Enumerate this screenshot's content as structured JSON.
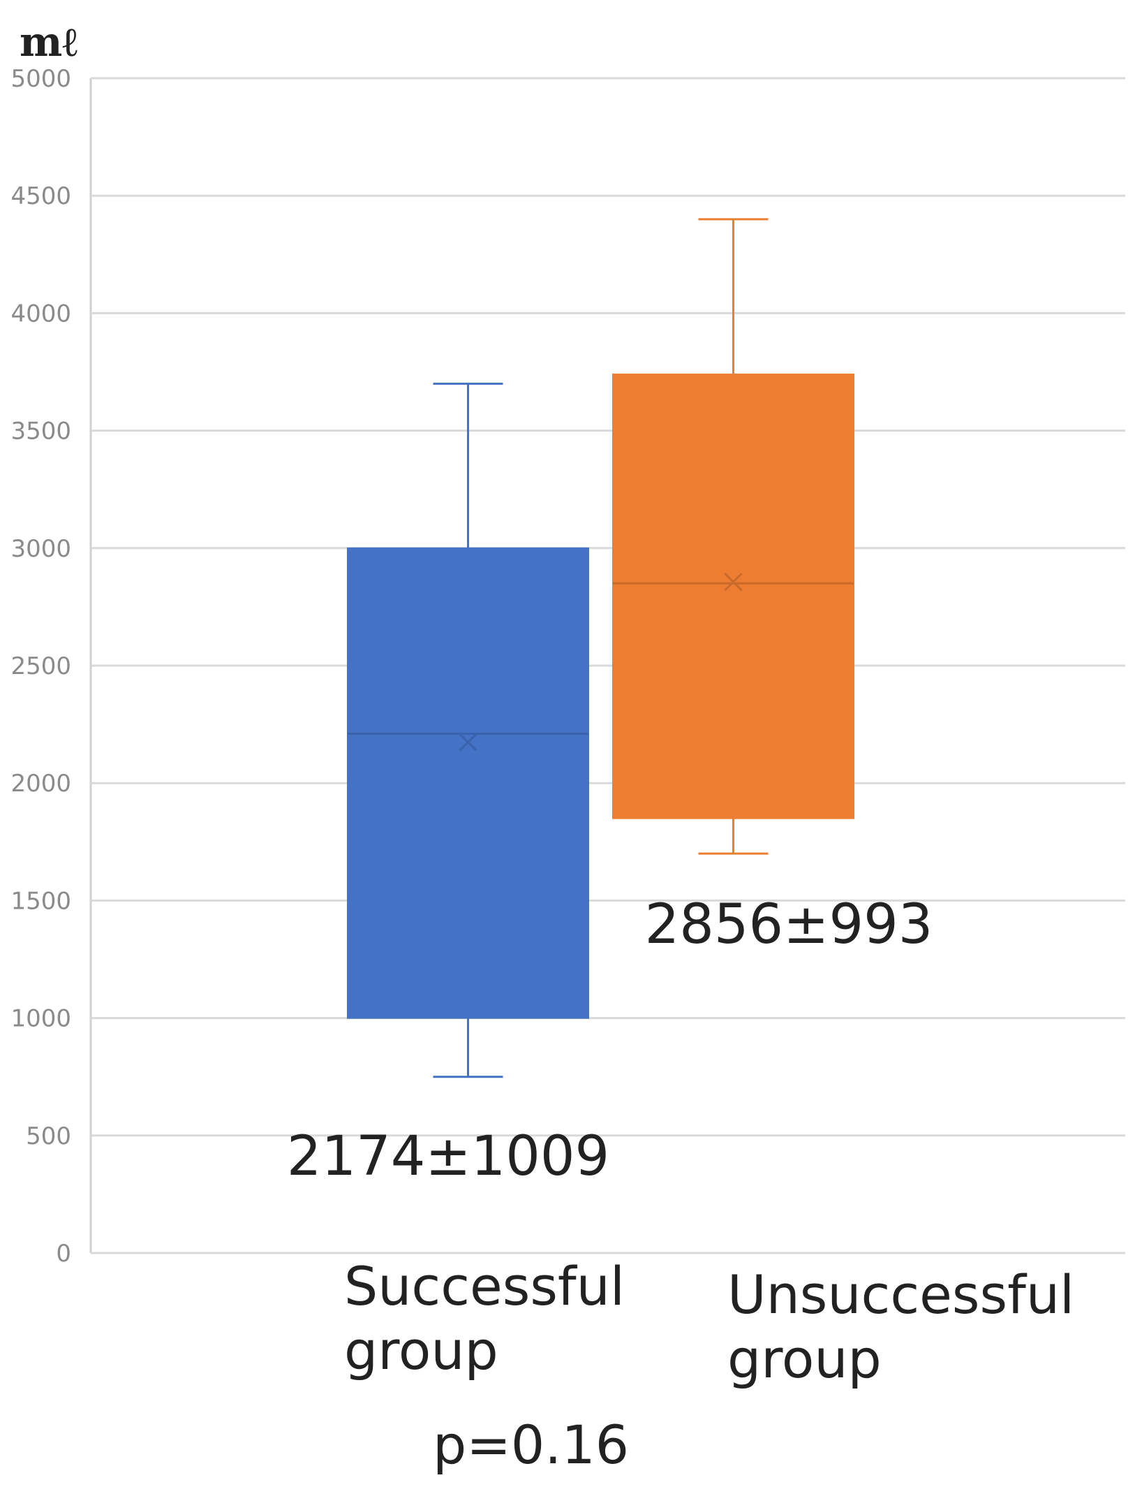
{
  "chart_data": {
    "type": "box",
    "ylabel": "mℓ",
    "ylim": [
      0,
      5000
    ],
    "yticks": [
      0,
      500,
      1000,
      1500,
      2000,
      2500,
      3000,
      3500,
      4000,
      4500,
      5000
    ],
    "grid": true,
    "categories": [
      "Successful group",
      "Unsuccessful group"
    ],
    "category_lines": [
      [
        "Successful",
        "group"
      ],
      [
        "Unsuccessful",
        "group"
      ]
    ],
    "boxes": [
      {
        "category": "Successful group",
        "color": "#4472c4",
        "min": 750,
        "q1": 1000,
        "median": 2210,
        "q3": 3000,
        "max": 3700,
        "mean": 2174,
        "annotation": "2174±1009"
      },
      {
        "category": "Unsuccessful group",
        "color": "#ed7d31",
        "min": 1700,
        "q1": 1850,
        "median": 2850,
        "q3": 3740,
        "max": 4400,
        "mean": 2856,
        "annotation": "2856±993"
      }
    ],
    "p_value_text": "p=0.16"
  }
}
